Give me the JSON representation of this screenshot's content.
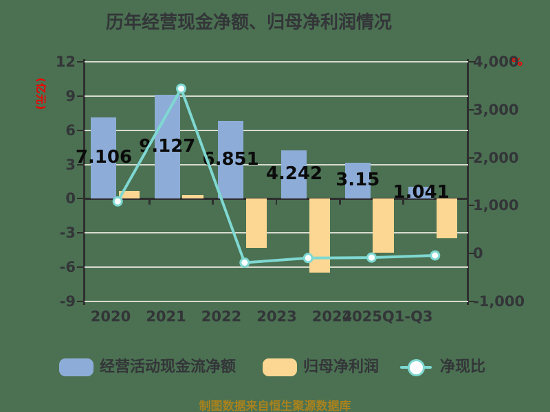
{
  "chart_data": {
    "type": "bar",
    "subtype": "grouped-bars-with-line-dual-axis",
    "title": "历年经营现金净额、归母净利润情况",
    "categories": [
      "2020",
      "2021",
      "2022",
      "2023",
      "2024",
      "2025Q1-Q3"
    ],
    "series": [
      {
        "name": "经营活动现金流净额",
        "type": "bar",
        "axis": "left",
        "color": "#8dadd8",
        "values": [
          7.106,
          9.127,
          6.851,
          4.242,
          3.15,
          1.041
        ],
        "labels": [
          "7.106",
          "9.127",
          "6.851",
          "4.242",
          "3.15",
          "1.041"
        ]
      },
      {
        "name": "归母净利润",
        "type": "bar",
        "axis": "left",
        "color": "#fbd793",
        "values": [
          0.68,
          0.3,
          -4.3,
          -6.5,
          -4.7,
          -3.45
        ],
        "values_estimated": true
      },
      {
        "name": "净现比",
        "type": "line",
        "axis": "right",
        "color": "#7fd8d2",
        "values": [
          1088,
          3440,
          -190,
          -95,
          -85,
          -40
        ],
        "values_estimated": true
      }
    ],
    "left_axis": {
      "unit": "(亿元)",
      "min": -9,
      "max": 12,
      "ticks": [
        12,
        9,
        6,
        3,
        0,
        -3,
        -6,
        -9
      ]
    },
    "right_axis": {
      "unit": "%",
      "min": -1000,
      "max": 4000,
      "ticks": [
        "4,000",
        "3,000",
        "2,000",
        "1,000",
        "0",
        "-1,000"
      ]
    },
    "grid": true,
    "legend_position": "bottom"
  },
  "footer": {
    "source_note": "制图数据来自恒生聚源数据库"
  },
  "colors": {
    "background": "#4b7152",
    "gridline": "#d9dcd1",
    "axis": "#2e2e2e",
    "text_dark": "#333538",
    "bar_cashflow": "#8dadd8",
    "bar_netprofit": "#fbd793",
    "line_ratio": "#7fd8d2",
    "axis_unit_red": "#f20000",
    "value_label": "#0b0b0b",
    "footer_gold": "#a8821e"
  }
}
